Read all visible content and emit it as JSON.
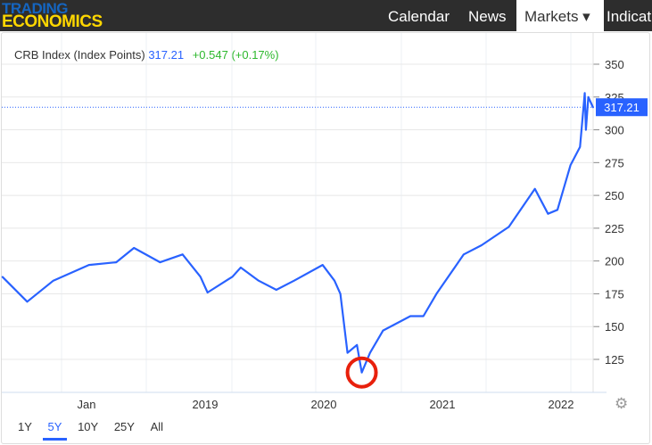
{
  "header": {
    "logo_line1": "TRADING",
    "logo_line2": "ECONOMICS",
    "nav": [
      {
        "label": "Calendar"
      },
      {
        "label": "News"
      },
      {
        "label": "Markets ▾"
      },
      {
        "label": "Indicat"
      }
    ]
  },
  "quote": {
    "name": "CRB Index (Index Points)",
    "price": "317.21",
    "change": "+0.547 (+0.17%)"
  },
  "ranges": [
    {
      "label": "1Y"
    },
    {
      "label": "5Y"
    },
    {
      "label": "10Y"
    },
    {
      "label": "25Y"
    },
    {
      "label": "All"
    }
  ],
  "active_range": "5Y",
  "colors": {
    "line": "#2962ff",
    "change": "#2db82d",
    "highlight": "#e8200c"
  },
  "chart_data": {
    "type": "line",
    "title": "CRB Index (Index Points)",
    "ylim": [
      100,
      360
    ],
    "xlim": [
      2017.28,
      2022.28
    ],
    "yticks": [
      125,
      150,
      175,
      200,
      225,
      250,
      275,
      300,
      325,
      350
    ],
    "xticks": [
      {
        "x": 2018.0,
        "label": "Jan"
      },
      {
        "x": 2019.0,
        "label": "2019"
      },
      {
        "x": 2020.0,
        "label": "2020"
      },
      {
        "x": 2021.0,
        "label": "2021"
      },
      {
        "x": 2022.0,
        "label": "2022"
      }
    ],
    "last_value_label": "317.21",
    "last_value": 317.21,
    "annotation": {
      "type": "circle",
      "x": 2020.32,
      "y": 115
    },
    "x": [
      2017.29,
      2017.5,
      2017.72,
      2018.02,
      2018.25,
      2018.4,
      2018.62,
      2018.81,
      2018.96,
      2019.02,
      2019.23,
      2019.3,
      2019.45,
      2019.6,
      2019.75,
      2019.99,
      2020.09,
      2020.14,
      2020.2,
      2020.28,
      2020.32,
      2020.39,
      2020.5,
      2020.73,
      2020.84,
      2020.95,
      2021.18,
      2021.33,
      2021.56,
      2021.78,
      2021.89,
      2021.97,
      2022.08,
      2022.16,
      2022.2,
      2022.21,
      2022.23,
      2022.27
    ],
    "values": [
      188,
      169,
      185,
      197,
      199,
      210,
      199,
      205,
      188,
      176,
      188,
      195,
      185,
      178,
      185,
      197,
      185,
      175,
      130,
      136,
      115,
      130,
      147,
      158,
      158,
      175,
      205,
      212,
      226,
      255,
      236,
      239,
      273,
      287,
      328,
      300,
      325,
      317
    ]
  }
}
